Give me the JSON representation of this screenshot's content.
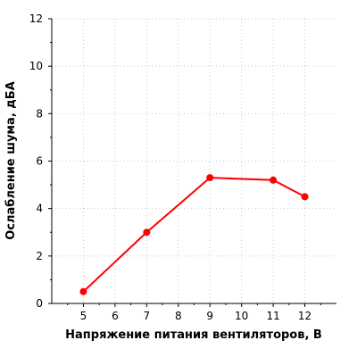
{
  "chart_data": {
    "type": "line",
    "x": [
      5,
      7,
      9,
      11,
      12
    ],
    "series": [
      {
        "values": [
          0.5,
          3.0,
          5.3,
          5.2,
          4.5
        ],
        "color": "#ff0000"
      }
    ],
    "xlabel": "Напряжение питания вентиляторов, В",
    "ylabel": "Ослабление шума, дБА",
    "xlim": [
      4,
      13
    ],
    "ylim": [
      0,
      12
    ],
    "xticks": [
      5,
      6,
      7,
      8,
      9,
      10,
      11,
      12
    ],
    "yticks": [
      0,
      2,
      4,
      6,
      8,
      10,
      12
    ],
    "grid": true
  }
}
